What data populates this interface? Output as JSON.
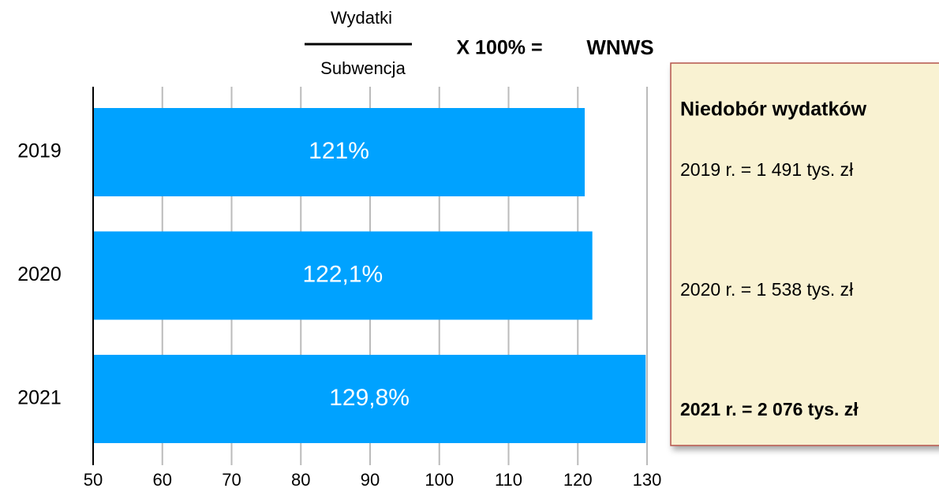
{
  "chart_data": {
    "type": "bar",
    "orientation": "horizontal",
    "categories": [
      "2019",
      "2020",
      "2021"
    ],
    "values": [
      121,
      122.1,
      129.8
    ],
    "value_labels": [
      "121%",
      "122,1%",
      "129,8%"
    ],
    "color": "#00a2ff",
    "xlim": [
      50,
      130
    ],
    "xticks": [
      50,
      60,
      70,
      80,
      90,
      100,
      110,
      120,
      130
    ],
    "grid": true,
    "formula": {
      "numerator": "Wydatki",
      "denominator": "Subwencja",
      "operator": "X 100% =",
      "result": "WNWS"
    },
    "note": {
      "title": "Niedobór wydatków",
      "lines": [
        "2019 r. = 1 491 tys. zł",
        "2020 r. = 1 538 tys. zł",
        "2021 r. = 2 076 tys. zł"
      ]
    }
  }
}
